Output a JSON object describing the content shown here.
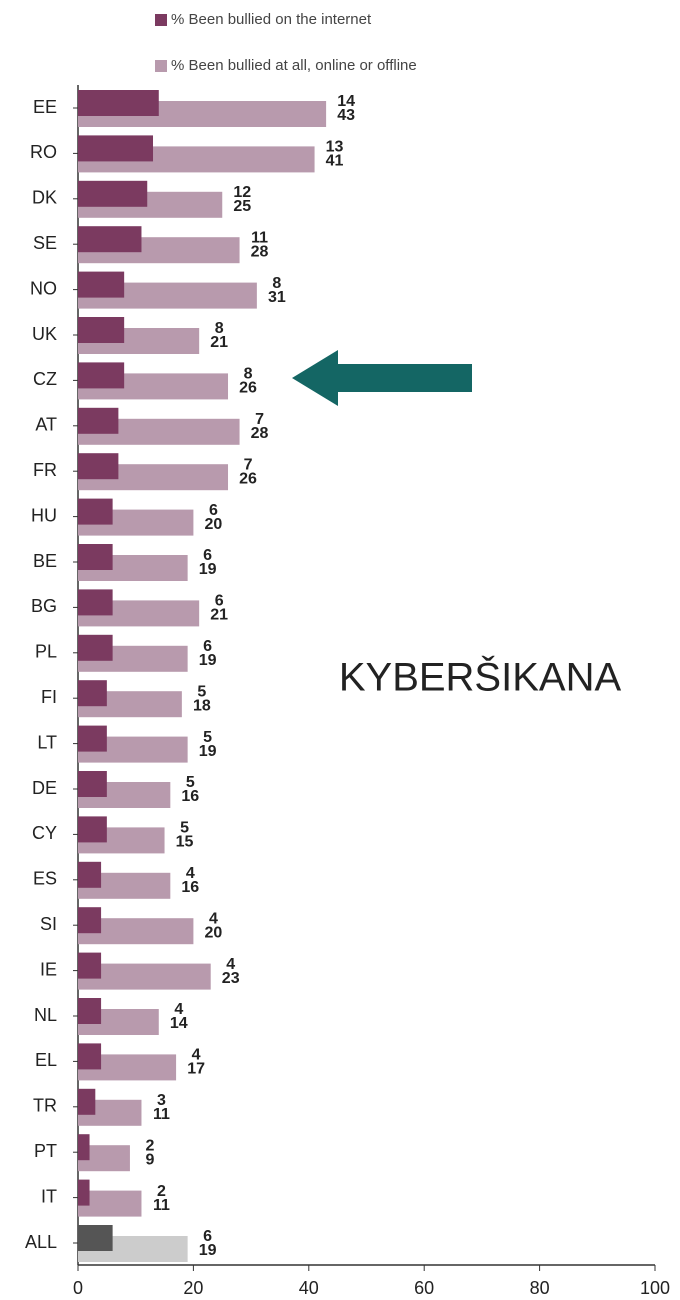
{
  "chart_data": {
    "type": "bar",
    "orientation": "horizontal",
    "categories": [
      "EE",
      "RO",
      "DK",
      "SE",
      "NO",
      "UK",
      "CZ",
      "AT",
      "FR",
      "HU",
      "BE",
      "BG",
      "PL",
      "FI",
      "LT",
      "DE",
      "CY",
      "ES",
      "SI",
      "IE",
      "NL",
      "EL",
      "TR",
      "PT",
      "IT",
      "ALL"
    ],
    "series": [
      {
        "name": "% Been bullied on the internet",
        "color": "#7b3a60",
        "values": [
          14,
          13,
          12,
          11,
          8,
          8,
          8,
          7,
          7,
          6,
          6,
          6,
          6,
          5,
          5,
          5,
          5,
          4,
          4,
          4,
          4,
          4,
          3,
          2,
          2,
          6
        ]
      },
      {
        "name": "% Been bullied at all, online or offline",
        "color": "#b89aad",
        "values": [
          43,
          41,
          25,
          28,
          31,
          21,
          26,
          28,
          26,
          20,
          19,
          21,
          19,
          18,
          19,
          16,
          15,
          16,
          20,
          23,
          14,
          17,
          11,
          9,
          11,
          19
        ]
      }
    ],
    "highlight": {
      "categories": [
        "ALL"
      ],
      "colors": [
        "#555555",
        "#cccccc"
      ]
    },
    "xlim": [
      0,
      100
    ],
    "xticks": [
      0,
      20,
      40,
      60,
      80,
      100
    ],
    "annotation": "KYBERŠIKANA"
  }
}
